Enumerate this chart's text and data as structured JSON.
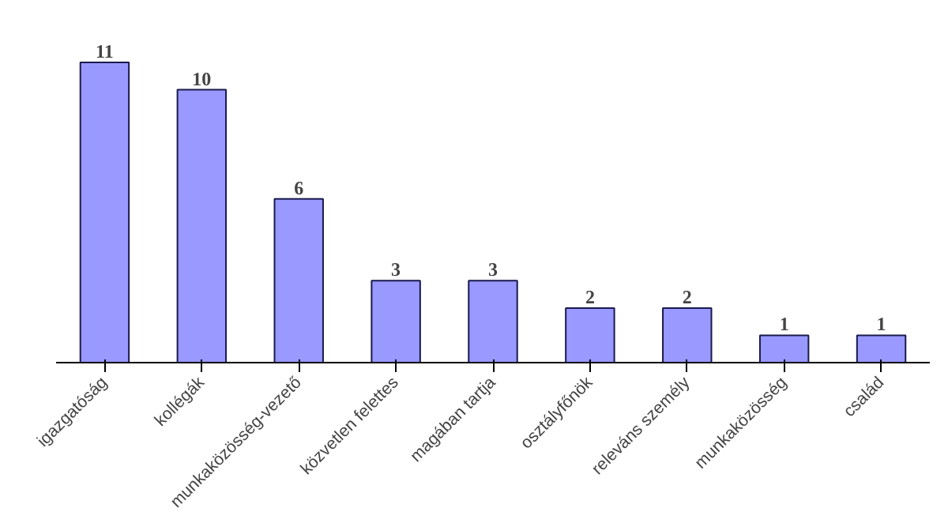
{
  "chart_data": {
    "type": "bar",
    "categories": [
      "igazgatóság",
      "kollégák",
      "munkaközösség-vezető",
      "közvetlen felettes",
      "magában tartja",
      "osztályfőnök",
      "releváns személy",
      "munkaközösség",
      "család"
    ],
    "values": [
      11,
      10,
      6,
      3,
      3,
      2,
      2,
      1,
      1
    ],
    "color": "#9999ff",
    "data_labels": true
  }
}
